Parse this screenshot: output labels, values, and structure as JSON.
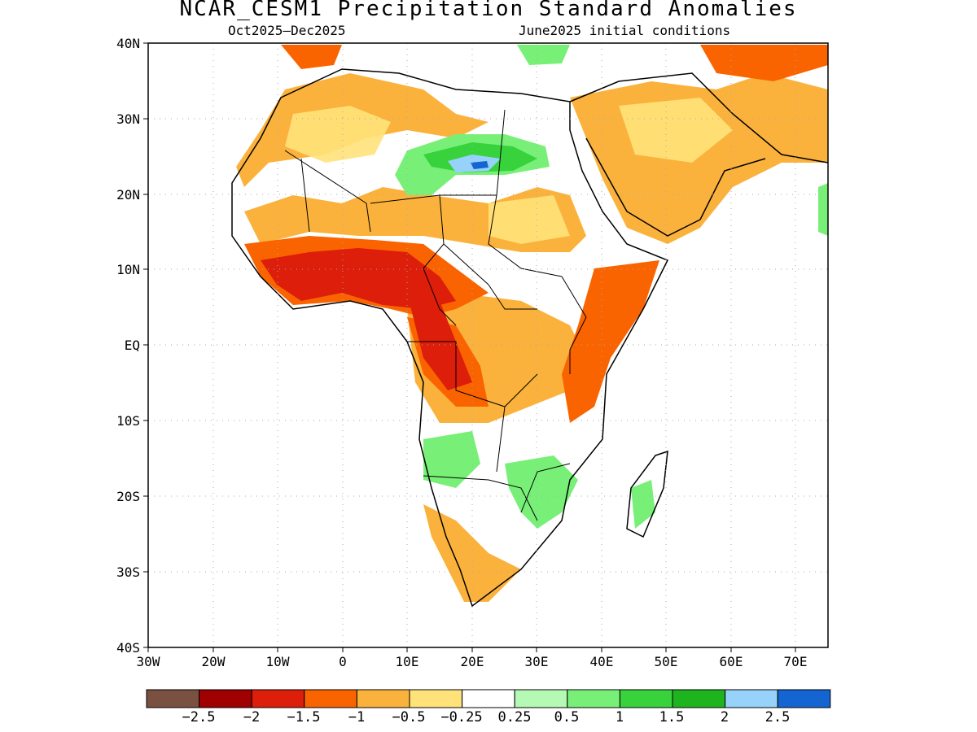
{
  "title": "NCAR_CESM1 Precipitation Standard Anomalies",
  "subtitle_left": "Oct2025–Dec2025",
  "subtitle_right": "June2025 initial conditions",
  "lat_labels": [
    "40N",
    "30N",
    "20N",
    "10N",
    "EQ",
    "10S",
    "20S",
    "30S",
    "40S"
  ],
  "lon_labels": [
    "30W",
    "20W",
    "10W",
    "0",
    "10E",
    "20E",
    "30E",
    "40E",
    "50E",
    "60E",
    "70E"
  ],
  "colorbar": {
    "colors": [
      "#7a5040",
      "#a00000",
      "#dc1e0a",
      "#fa6400",
      "#fbb23c",
      "#ffe27a",
      "#ffffff",
      "#b4fab4",
      "#78f078",
      "#37d23c",
      "#1eb41e",
      "#96d2fa",
      "#1464d2"
    ],
    "labels": [
      "−2.5",
      "−2",
      "−1.5",
      "−1",
      "−0.5",
      "−0.25",
      "0.25",
      "0.5",
      "1",
      "1.5",
      "2",
      "2.5"
    ]
  },
  "chart_data": {
    "type": "heatmap",
    "title": "NCAR_CESM1 Precipitation Standard Anomalies",
    "period": "Oct2025–Dec2025",
    "initial_conditions": "June2025 initial conditions",
    "lon_range": [
      -30,
      75
    ],
    "lat_range": [
      -40,
      40
    ],
    "color_levels": [
      -2.5,
      -2,
      -1.5,
      -1,
      -0.5,
      -0.25,
      0.25,
      0.5,
      1,
      1.5,
      2,
      2.5
    ],
    "grid": true
  }
}
